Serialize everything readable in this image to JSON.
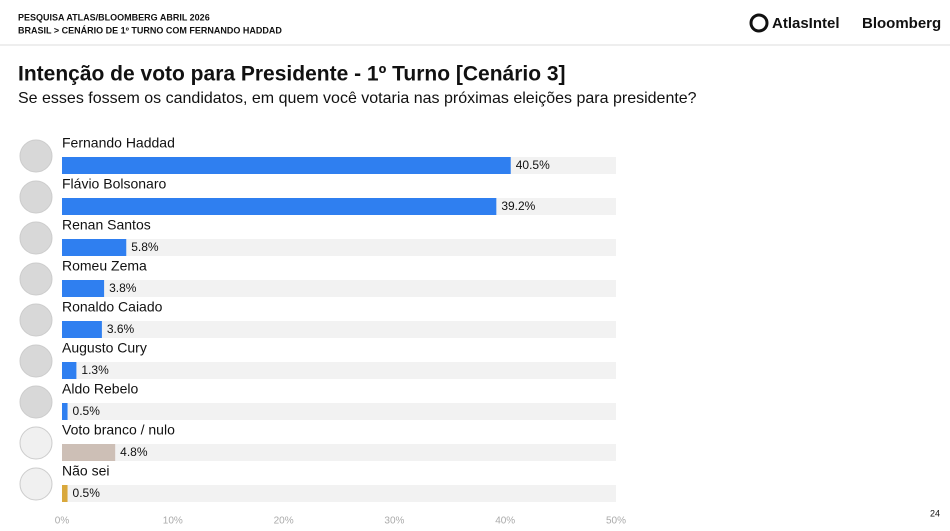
{
  "header": {
    "line1": "PESQUISA ATLAS/BLOOMBERG ABRIL 2026",
    "line2": "BRASIL > CENÁRIO DE 1º TURNO COM FERNANDO HADDAD",
    "logo1": "AtlasIntel",
    "logo2": "Bloomberg"
  },
  "page_number": "24",
  "chart_data": {
    "type": "barh",
    "title": "Intenção de voto para Presidente - 1º Turno [Cenário 3]",
    "subtitle": "Se esses fossem os candidatos, em quem você votaria nas próximas eleições para presidente?",
    "categories": [
      "Fernando Haddad",
      "Flávio Bolsonaro",
      "Renan Santos",
      "Romeu Zema",
      "Ronaldo Caiado",
      "Augusto Cury",
      "Aldo Rebelo",
      "Voto branco / nulo",
      "Não sei"
    ],
    "values": [
      40.5,
      39.2,
      5.8,
      3.8,
      3.6,
      1.3,
      0.5,
      4.8,
      0.5
    ],
    "value_labels": [
      "40.5%",
      "39.2%",
      "5.8%",
      "3.8%",
      "3.6%",
      "1.3%",
      "0.5%",
      "4.8%",
      "0.5%"
    ],
    "colors": [
      "#2f7ff0",
      "#2f7ff0",
      "#2f7ff0",
      "#2f7ff0",
      "#2f7ff0",
      "#2f7ff0",
      "#2f7ff0",
      "#cdbfb6",
      "#d9a83c"
    ],
    "xlim": [
      0,
      50
    ],
    "xticks": [
      {
        "value": 0,
        "label": "0%"
      },
      {
        "value": 10,
        "label": "10%"
      },
      {
        "value": 20,
        "label": "20%"
      },
      {
        "value": 30,
        "label": "30%"
      },
      {
        "value": 40,
        "label": "40%"
      },
      {
        "value": 50,
        "label": "50%"
      }
    ]
  }
}
